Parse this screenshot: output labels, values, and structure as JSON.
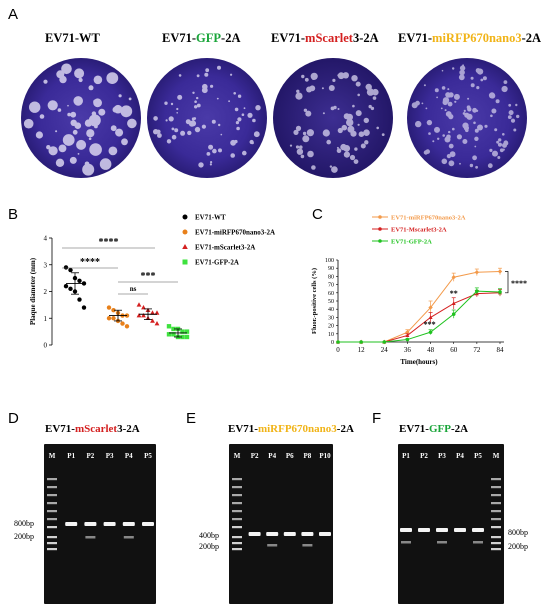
{
  "panelA": {
    "letter": "A",
    "titles": [
      {
        "parts": [
          {
            "t": "EV71-WT",
            "c": "#000"
          }
        ]
      },
      {
        "parts": [
          {
            "t": "EV71-",
            "c": "#000"
          },
          {
            "t": "GFP",
            "c": "#1aa53a"
          },
          {
            "t": "-2A",
            "c": "#000"
          }
        ]
      },
      {
        "parts": [
          {
            "t": "EV71-",
            "c": "#000"
          },
          {
            "t": "mScarlet",
            "c": "#d42020"
          },
          {
            "t": "3-2A",
            "c": "#000"
          }
        ]
      },
      {
        "parts": [
          {
            "t": "EV71-",
            "c": "#000"
          },
          {
            "t": "miRFP670nano3",
            "c": "#f1b418"
          },
          {
            "t": "-2A",
            "c": "#000"
          }
        ]
      }
    ]
  },
  "panelB": {
    "letter": "B",
    "chart_data": {
      "type": "scatter",
      "title": "",
      "ylabel": "Plaque diameter (mm)",
      "ylim": [
        0,
        4
      ],
      "yticks": [
        "0",
        "1",
        "2",
        "3",
        "4"
      ],
      "legend": [
        {
          "name": "EV71-WT",
          "color": "#000000",
          "marker": "circle"
        },
        {
          "name": "EV71-miRFP670nano3-2A",
          "color": "#e8801a",
          "marker": "circle"
        },
        {
          "name": "EV71-mScarlet3-2A",
          "color": "#d42020",
          "marker": "triangle"
        },
        {
          "name": "EV71-GFP-2A",
          "color": "#3ee23e",
          "marker": "square"
        }
      ],
      "series": [
        {
          "name": "EV71-WT",
          "values": [
            2.9,
            2.8,
            2.5,
            2.4,
            2.3,
            2.2,
            2.1,
            2.0,
            1.7,
            1.4
          ],
          "mean": 2.3,
          "sd": 0.4
        },
        {
          "name": "EV71-miRFP670nano3-2A",
          "values": [
            1.4,
            1.3,
            1.2,
            1.1,
            1.1,
            1.0,
            1.0,
            0.9,
            0.8,
            0.7
          ],
          "mean": 1.1,
          "sd": 0.2
        },
        {
          "name": "EV71-mScarlet3-2A",
          "values": [
            1.5,
            1.4,
            1.3,
            1.2,
            1.2,
            1.1,
            1.1,
            1.0,
            0.9,
            0.8
          ],
          "mean": 1.15,
          "sd": 0.2
        },
        {
          "name": "EV71-GFP-2A",
          "values": [
            0.7,
            0.6,
            0.6,
            0.5,
            0.5,
            0.4,
            0.4,
            0.3,
            0.3,
            0.3
          ],
          "mean": 0.45,
          "sd": 0.15
        }
      ],
      "annotations": [
        "****",
        "****",
        "ns",
        "***"
      ]
    }
  },
  "panelC": {
    "letter": "C",
    "chart_data": {
      "type": "line",
      "title": "",
      "xlabel": "Time(hours)",
      "ylabel": "Fluor.-positive cells (%)",
      "x": [
        0,
        12,
        24,
        36,
        48,
        60,
        72,
        84
      ],
      "ylim": [
        0,
        100
      ],
      "yticks": [
        "0",
        "10",
        "20",
        "30",
        "40",
        "50",
        "60",
        "70",
        "80",
        "90",
        "100"
      ],
      "xticks": [
        "0",
        "12",
        "24",
        "36",
        "48",
        "60",
        "72",
        "84"
      ],
      "series": [
        {
          "name": "EV71-miRFP670nano3-2A",
          "color": "#f39a4a",
          "values": [
            0,
            0,
            0,
            12,
            42,
            79,
            85,
            86
          ],
          "err": [
            0,
            0,
            0,
            3,
            8,
            5,
            4,
            4
          ]
        },
        {
          "name": "EV71-Mscarlet3-2A",
          "color": "#d42020",
          "values": [
            0,
            0,
            0,
            8,
            30,
            47,
            59,
            60
          ],
          "err": [
            0,
            0,
            0,
            2,
            6,
            7,
            4,
            4
          ]
        },
        {
          "name": "EV71-GFP-2A",
          "color": "#1fc21f",
          "values": [
            0,
            0,
            0,
            3,
            12,
            34,
            62,
            61
          ],
          "err": [
            0,
            0,
            0,
            1,
            3,
            5,
            4,
            4
          ]
        }
      ],
      "annotations": [
        "**",
        "***",
        "****"
      ]
    }
  },
  "panelD": {
    "letter": "D",
    "title_parts": [
      {
        "t": "EV71-",
        "c": "#000"
      },
      {
        "t": "mScarlet",
        "c": "#d42020"
      },
      {
        "t": "3-2A",
        "c": "#000"
      }
    ],
    "lanes": [
      "M",
      "P1",
      "P2",
      "P3",
      "P4",
      "P5"
    ],
    "markers": [
      "800bp",
      "200bp"
    ]
  },
  "panelE": {
    "letter": "E",
    "title_parts": [
      {
        "t": "EV71-",
        "c": "#000"
      },
      {
        "t": "miRFP670nano3",
        "c": "#f1b418"
      },
      {
        "t": "-2A",
        "c": "#000"
      }
    ],
    "lanes": [
      "M",
      "P2",
      "P4",
      "P6",
      "P8",
      "P10"
    ],
    "markers": [
      "400bp",
      "200bp"
    ]
  },
  "panelF": {
    "letter": "F",
    "title_parts": [
      {
        "t": "EV71-",
        "c": "#000"
      },
      {
        "t": "GFP",
        "c": "#1aa53a"
      },
      {
        "t": "-2A",
        "c": "#000"
      }
    ],
    "lanes": [
      "P1",
      "P2",
      "P3",
      "P4",
      "P5",
      "M"
    ],
    "markers": [
      "800bp",
      "200bp"
    ]
  }
}
